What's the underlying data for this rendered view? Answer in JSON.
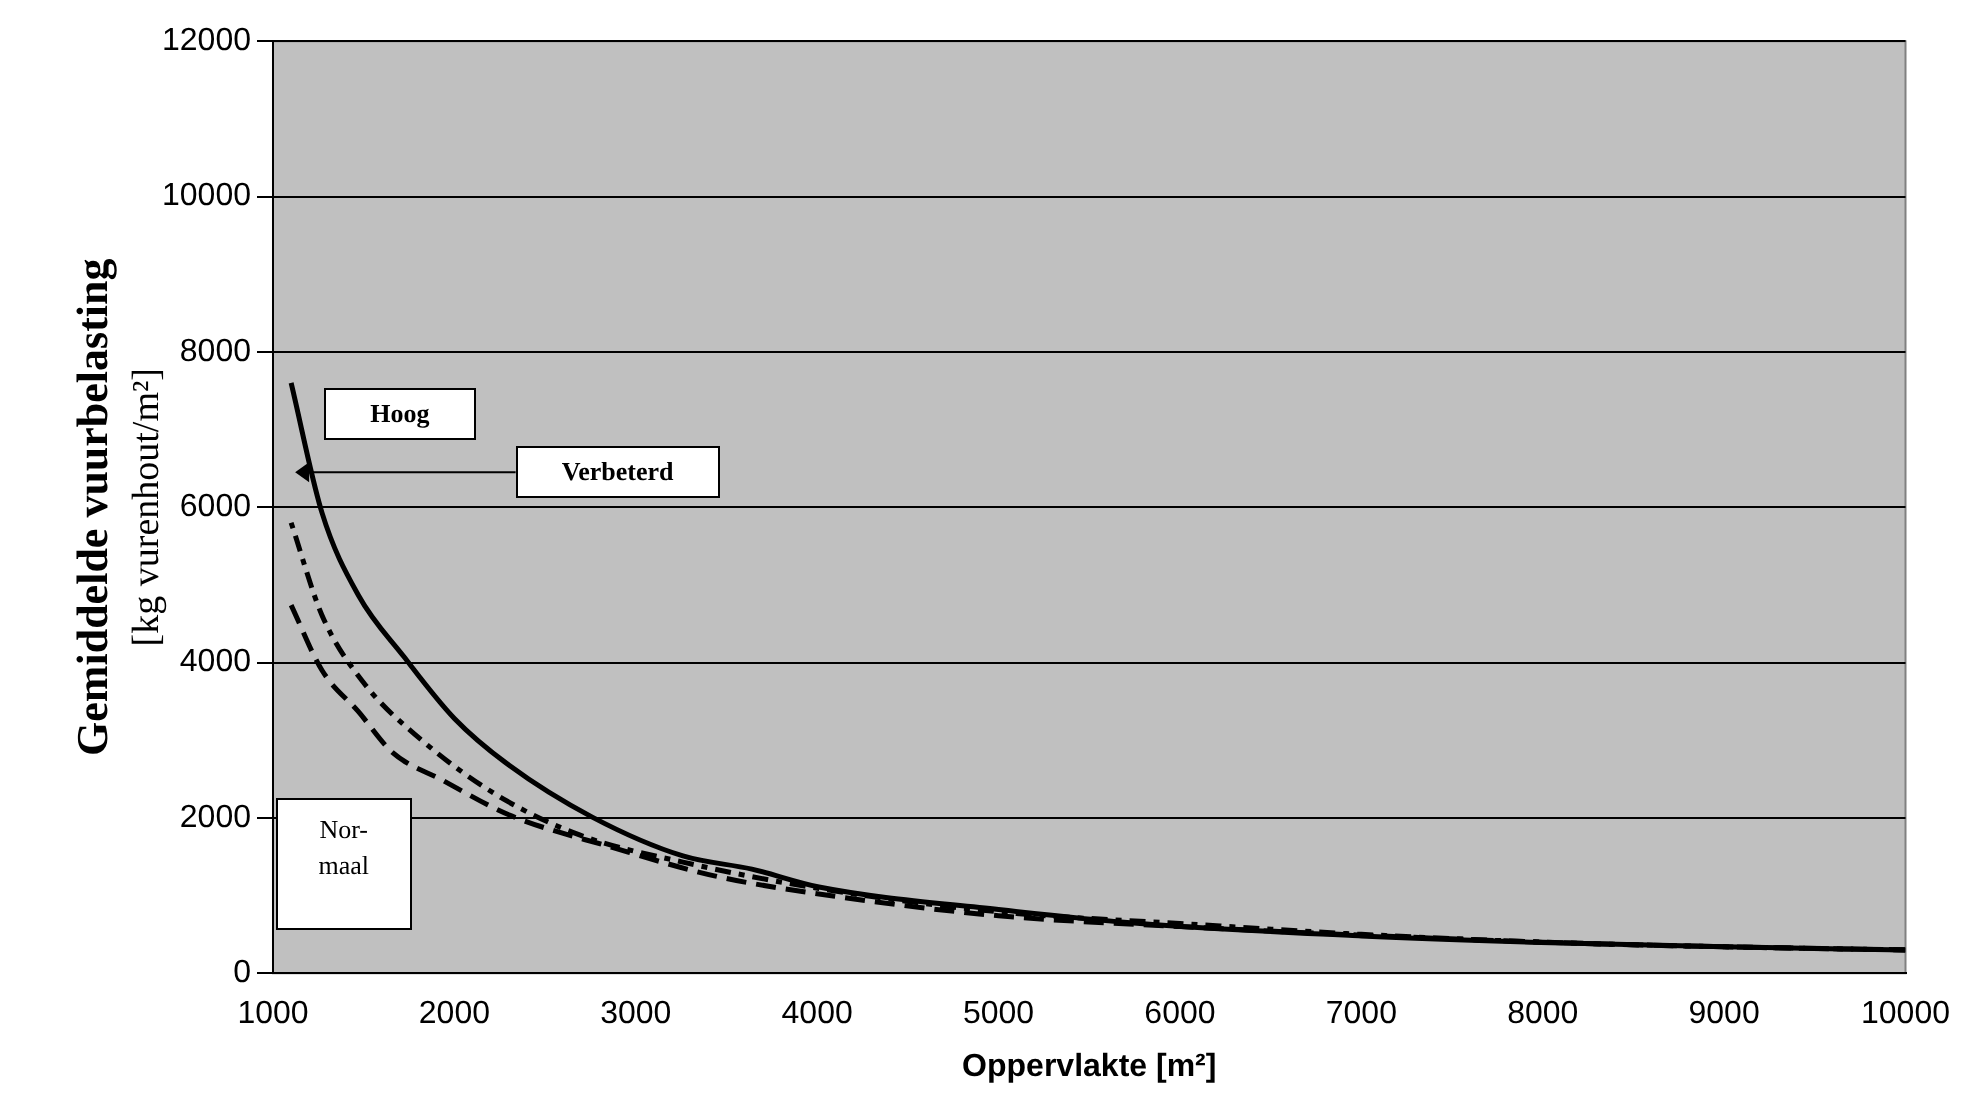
{
  "chart_data": {
    "type": "line",
    "xlabel": "Oppervlakte [m²]",
    "ylabel": "Gemiddelde vuurbelasting\n[kg vurenhout/m²]",
    "xlim": [
      1000,
      10000
    ],
    "xticks": [
      1000,
      2000,
      3000,
      4000,
      5000,
      6000,
      7000,
      8000,
      9000,
      10000
    ],
    "ylim": [
      0,
      12000
    ],
    "yticks": [
      0,
      2000,
      4000,
      6000,
      8000,
      10000,
      12000
    ],
    "grid": "y",
    "legend": false,
    "series": [
      {
        "name": "Hoog",
        "color": "#000000",
        "line_style": "solid",
        "x": [
          1100,
          1270,
          1470,
          1720,
          2000,
          2300,
          2760,
          3260,
          3640,
          4010,
          5000,
          5780,
          7000,
          7930,
          9000,
          10000
        ],
        "values": [
          7600,
          5930,
          4870,
          4080,
          3280,
          2680,
          2010,
          1510,
          1340,
          1110,
          820,
          640,
          480,
          400,
          340,
          300
        ]
      },
      {
        "name": "Verbeterd",
        "color": "#000000",
        "line_style": "dotted",
        "x": [
          1100,
          1270,
          1500,
          1810,
          2230,
          2690,
          3260,
          4010,
          5000,
          6000,
          7000,
          8000,
          9000,
          10000
        ],
        "values": [
          5800,
          4610,
          3740,
          3020,
          2300,
          1780,
          1430,
          1090,
          790,
          640,
          500,
          400,
          340,
          300
        ]
      },
      {
        "name": "Nor-maal",
        "color": "#000000",
        "line_style": "dashed",
        "x": [
          1100,
          1270,
          1470,
          1660,
          1930,
          2300,
          2870,
          3440,
          4130,
          5000,
          6000,
          7000,
          8000,
          9000,
          10000
        ],
        "values": [
          4740,
          3900,
          3370,
          2840,
          2490,
          2040,
          1620,
          1250,
          980,
          740,
          600,
          490,
          400,
          340,
          300
        ]
      }
    ]
  }
}
